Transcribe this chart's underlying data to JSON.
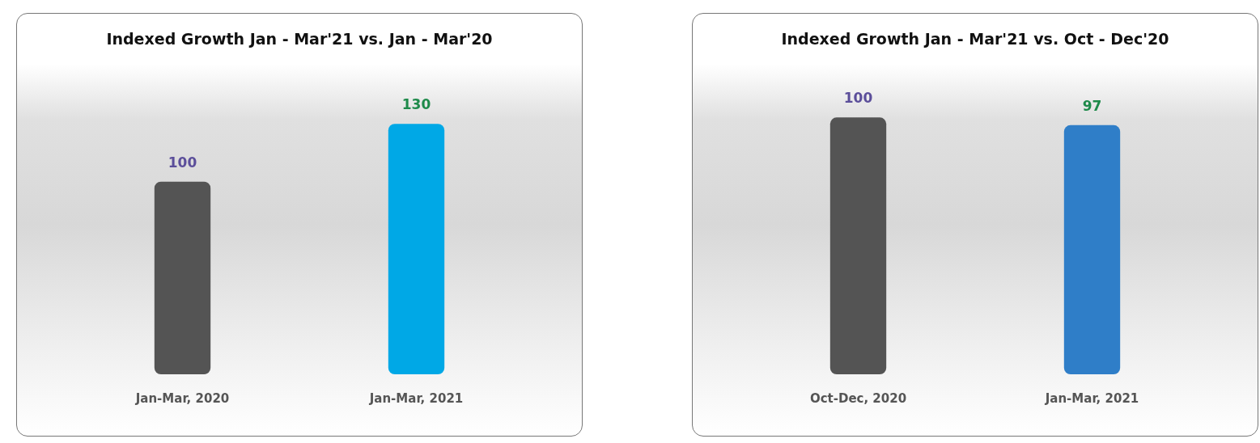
{
  "chart_data": [
    {
      "type": "bar",
      "title": "Indexed Growth Jan - Mar'21 vs. Jan - Mar'20",
      "categories": [
        "Jan-Mar, 2020",
        "Jan-Mar, 2021"
      ],
      "values": [
        100,
        130
      ],
      "colors": [
        "#545454",
        "#00a8e6"
      ],
      "data_labels": true,
      "tick_labels": "x",
      "grid": false
    },
    {
      "type": "bar",
      "title": "Indexed Growth Jan - Mar'21 vs. Oct - Dec'20",
      "categories": [
        "Oct-Dec, 2020",
        "Jan-Mar, 2021"
      ],
      "values": [
        100,
        97
      ],
      "colors": [
        "#545454",
        "#2f7ec8"
      ],
      "data_labels": true,
      "tick_labels": "x",
      "grid": false
    }
  ]
}
